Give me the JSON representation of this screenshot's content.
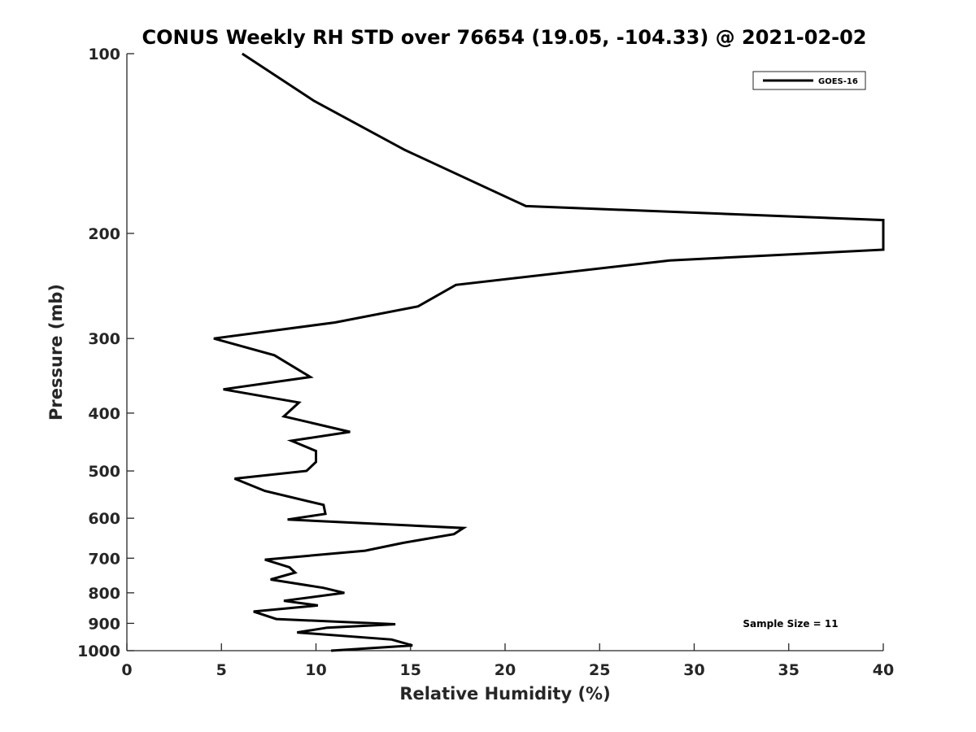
{
  "chart_data": {
    "type": "line",
    "title": "CONUS Weekly RH STD over 76654 (19.05, -104.33) @ 2021-02-02",
    "xlabel": "Relative Humidity (%)",
    "ylabel": "Pressure (mb)",
    "xlim": [
      0,
      40
    ],
    "ylim": [
      100,
      1000
    ],
    "yscale": "log",
    "y_direction": "reversed",
    "xticks": [
      0,
      5,
      10,
      15,
      20,
      25,
      30,
      35,
      40
    ],
    "xtick_labels": [
      "0",
      "5",
      "10",
      "15",
      "20",
      "25",
      "30",
      "35",
      "40"
    ],
    "yticks": [
      100,
      200,
      300,
      400,
      500,
      600,
      700,
      800,
      900,
      1000
    ],
    "ytick_labels": [
      "100",
      "200",
      "300",
      "400",
      "500",
      "600",
      "700",
      "800",
      "900",
      "1000"
    ],
    "grid": false,
    "legend_position": "top-right",
    "series": [
      {
        "name": "GOES-16",
        "color": "#000000",
        "points": [
          [
            6.1,
            100
          ],
          [
            9.9,
            120
          ],
          [
            14.7,
            145
          ],
          [
            21.1,
            180
          ],
          [
            40,
            190
          ],
          [
            40,
            213
          ],
          [
            28.7,
            222
          ],
          [
            17.4,
            244
          ],
          [
            15.4,
            265
          ],
          [
            11.0,
            282
          ],
          [
            4.6,
            300
          ],
          [
            7.8,
            320
          ],
          [
            9.7,
            348
          ],
          [
            5.1,
            365
          ],
          [
            9.1,
            384
          ],
          [
            8.3,
            405
          ],
          [
            11.8,
            430
          ],
          [
            8.7,
            445
          ],
          [
            10.0,
            463
          ],
          [
            10.0,
            483
          ],
          [
            9.5,
            500
          ],
          [
            5.7,
            515
          ],
          [
            7.3,
            540
          ],
          [
            10.4,
            570
          ],
          [
            10.5,
            590
          ],
          [
            8.5,
            603
          ],
          [
            17.8,
            623
          ],
          [
            17.3,
            638
          ],
          [
            14.6,
            660
          ],
          [
            12.6,
            680
          ],
          [
            7.3,
            704
          ],
          [
            8.6,
            725
          ],
          [
            8.9,
            740
          ],
          [
            7.6,
            760
          ],
          [
            10.4,
            785
          ],
          [
            11.5,
            800
          ],
          [
            8.3,
            825
          ],
          [
            10.1,
            840
          ],
          [
            6.7,
            860
          ],
          [
            7.9,
            885
          ],
          [
            14.2,
            903
          ],
          [
            10.6,
            915
          ],
          [
            9.0,
            932
          ],
          [
            14.0,
            958
          ],
          [
            15.1,
            980
          ],
          [
            10.8,
            1000
          ]
        ]
      }
    ],
    "annotations": [
      "Sample Size = 11"
    ]
  }
}
